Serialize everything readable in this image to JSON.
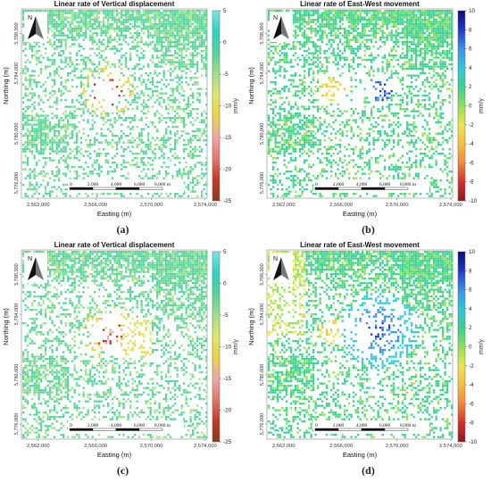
{
  "panel_labels": [
    "(a)",
    "(b)",
    "(c)",
    "(d)"
  ],
  "north_label": "N",
  "scalebar": {
    "ticks": [
      "0",
      "2,000",
      "4,000",
      "6,000",
      "8,000 m"
    ]
  },
  "colors": {
    "vertical_colormap": [
      "#8a3b1b",
      "#c0392b",
      "#e07a6a",
      "#f2a6a6",
      "#e9d34a",
      "#dfe86a",
      "#9fe08a",
      "#54d49a",
      "#2fd0c4",
      "#7fe3e8"
    ],
    "eastwest_colormap": [
      "#8b1a1a",
      "#d62e2e",
      "#f08a3a",
      "#f2c13a",
      "#e8e64a",
      "#8fe05a",
      "#38d08f",
      "#2fc8d8",
      "#3a8fe8",
      "#2236c8",
      "#0a0a7a"
    ]
  },
  "chart_data": [
    {
      "type": "heatmap",
      "title": "Linear rate of Vertical displacement",
      "xlabel": "Easting (m)",
      "ylabel": "Northing (m)",
      "colorbar_label": "mm/y",
      "x_ticks": [
        "2,562,000",
        "2,566,000",
        "2,570,000",
        "2,574,000"
      ],
      "y_ticks": [
        "5,788,000",
        "5,784,000",
        "5,780,000",
        "5,776,000"
      ],
      "colorbar_ticks": [
        "5",
        "0",
        "-5",
        "-10",
        "-15",
        "-20",
        "-25"
      ],
      "colorbar_range": [
        -25,
        5
      ],
      "colormap": "vertical"
    },
    {
      "type": "heatmap",
      "title": "Linear rate of East-West movement",
      "xlabel": "Easting (m)",
      "ylabel": "Northing (m)",
      "colorbar_label": "mm/y",
      "x_ticks": [
        "2,562,000",
        "2,566,000",
        "2,570,000",
        "2,574,000"
      ],
      "y_ticks": [
        "5,788,000",
        "5,784,000",
        "5,780,000",
        "5,776,000"
      ],
      "colorbar_ticks": [
        "10",
        "8",
        "6",
        "4",
        "2",
        "0",
        "-2",
        "-4",
        "-6",
        "-8",
        "-10"
      ],
      "colorbar_range": [
        -10,
        10
      ],
      "colormap": "eastwest"
    },
    {
      "type": "heatmap",
      "title": "Linear rate of Vertical displacement",
      "xlabel": "Easting (m)",
      "ylabel": "Northing (m)",
      "colorbar_label": "mm/y",
      "x_ticks": [
        "2,562,000",
        "2,566,000",
        "2,570,000",
        "2,574,000"
      ],
      "y_ticks": [
        "5,788,000",
        "5,784,000",
        "5,780,000",
        "5,776,000"
      ],
      "colorbar_ticks": [
        "5",
        "0",
        "-5",
        "-10",
        "-15",
        "-20",
        "-25"
      ],
      "colorbar_range": [
        -25,
        5
      ],
      "colormap": "vertical"
    },
    {
      "type": "heatmap",
      "title": "Linear rate of East-West movement",
      "xlabel": "Easting (m)",
      "ylabel": "Northing (m)",
      "colorbar_label": "mm/y",
      "x_ticks": [
        "2,562,000",
        "2,566,000",
        "2,570,000",
        "2,574,000"
      ],
      "y_ticks": [
        "5,788,000",
        "5,784,000",
        "5,780,000",
        "5,776,000"
      ],
      "colorbar_ticks": [
        "10",
        "8",
        "6",
        "4",
        "2",
        "0",
        "-2",
        "-4",
        "-6",
        "-8",
        "-10"
      ],
      "colorbar_range": [
        -10,
        10
      ],
      "colormap": "eastwest"
    }
  ]
}
